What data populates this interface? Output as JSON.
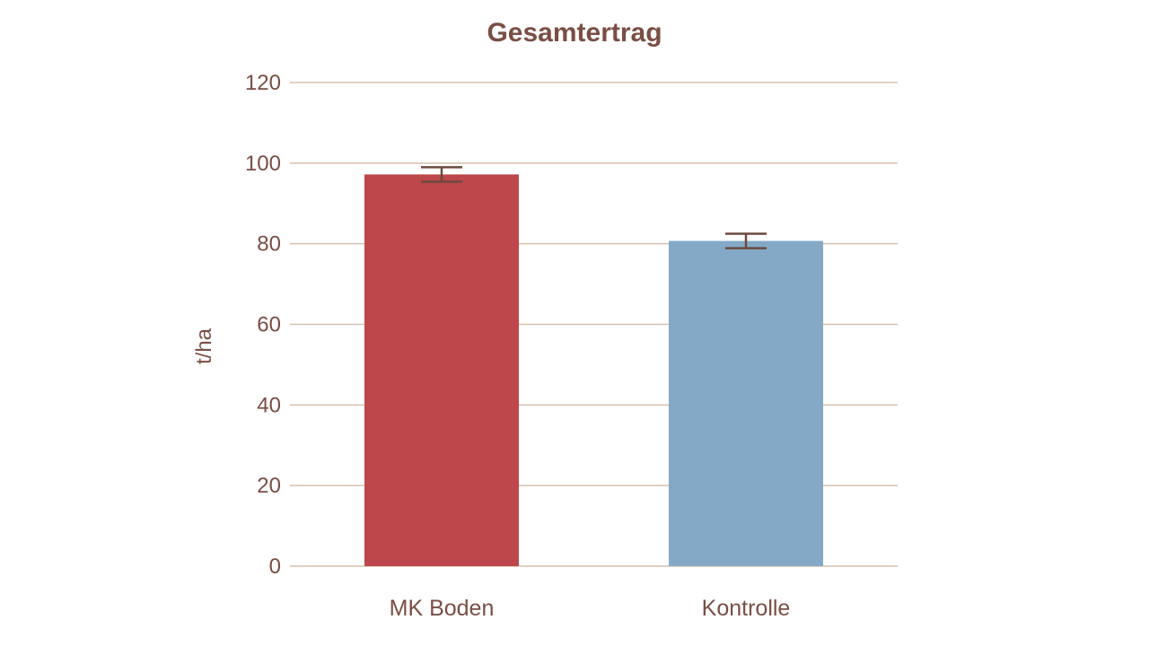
{
  "chart_data": {
    "type": "bar",
    "title": "Gesamtertrag",
    "xlabel": "",
    "ylabel": "t/ha",
    "categories": [
      "MK Boden",
      "Kontrolle"
    ],
    "values": [
      97.2,
      80.7
    ],
    "error": [
      1.8,
      1.8
    ],
    "colors": [
      "#be474b",
      "#84a9c7"
    ],
    "ylim": [
      0,
      120
    ],
    "yticks": [
      "0",
      "20",
      "40",
      "60",
      "80",
      "100",
      "120"
    ],
    "grid": true,
    "legend": "none"
  }
}
